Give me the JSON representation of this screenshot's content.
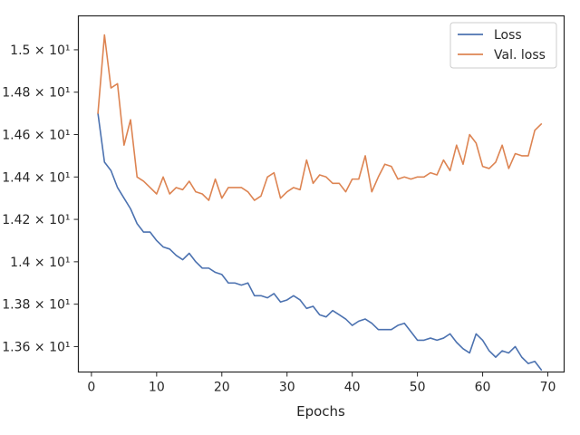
{
  "colors": {
    "loss": "#4c72b0",
    "val_loss": "#dd8452",
    "axis": "#262626",
    "legend_border": "#cccccc"
  },
  "chart_data": {
    "type": "line",
    "title": "",
    "xlabel": "Epochs",
    "ylabel": "",
    "xlim": [
      -2,
      72.5
    ],
    "ylim": [
      13.48,
      15.16
    ],
    "x_ticks": [
      0,
      10,
      20,
      30,
      40,
      50,
      60,
      70
    ],
    "x_tick_labels": [
      "0",
      "10",
      "20",
      "30",
      "40",
      "50",
      "60",
      "70"
    ],
    "y_ticks": [
      13.6,
      13.8,
      14.0,
      14.2,
      14.4,
      14.6,
      14.8,
      15.0
    ],
    "y_tick_labels": [
      "1.36 × 10¹",
      "1.38 × 10¹",
      "1.4 × 10¹",
      "1.42 × 10¹",
      "1.44 × 10¹",
      "1.46 × 10¹",
      "1.48 × 10¹",
      "1.5 × 10¹"
    ],
    "grid": false,
    "legend_position": "top-right",
    "x": [
      1,
      2,
      3,
      4,
      5,
      6,
      7,
      8,
      9,
      10,
      11,
      12,
      13,
      14,
      15,
      16,
      17,
      18,
      19,
      20,
      21,
      22,
      23,
      24,
      25,
      26,
      27,
      28,
      29,
      30,
      31,
      32,
      33,
      34,
      35,
      36,
      37,
      38,
      39,
      40,
      41,
      42,
      43,
      44,
      45,
      46,
      47,
      48,
      49,
      50,
      51,
      52,
      53,
      54,
      55,
      56,
      57,
      58,
      59,
      60,
      61,
      62,
      63,
      64,
      65,
      66,
      67,
      68,
      69
    ],
    "series": [
      {
        "name": "Loss",
        "color": "#4c72b0",
        "values": [
          14.7,
          14.47,
          14.43,
          14.35,
          14.3,
          14.25,
          14.18,
          14.14,
          14.14,
          14.1,
          14.07,
          14.06,
          14.03,
          14.01,
          14.04,
          14.0,
          13.97,
          13.97,
          13.95,
          13.94,
          13.9,
          13.9,
          13.89,
          13.9,
          13.84,
          13.84,
          13.83,
          13.85,
          13.81,
          13.82,
          13.84,
          13.82,
          13.78,
          13.79,
          13.75,
          13.74,
          13.77,
          13.75,
          13.73,
          13.7,
          13.72,
          13.73,
          13.71,
          13.68,
          13.68,
          13.68,
          13.7,
          13.71,
          13.67,
          13.63,
          13.63,
          13.64,
          13.63,
          13.64,
          13.66,
          13.62,
          13.59,
          13.57,
          13.66,
          13.63,
          13.58,
          13.55,
          13.58,
          13.57,
          13.6,
          13.55,
          13.52,
          13.53,
          13.49
        ]
      },
      {
        "name": "Val. loss",
        "color": "#dd8452",
        "values": [
          14.7,
          15.07,
          14.82,
          14.84,
          14.55,
          14.67,
          14.4,
          14.38,
          14.35,
          14.32,
          14.4,
          14.32,
          14.35,
          14.34,
          14.38,
          14.33,
          14.32,
          14.29,
          14.39,
          14.3,
          14.35,
          14.35,
          14.35,
          14.33,
          14.29,
          14.31,
          14.4,
          14.42,
          14.3,
          14.33,
          14.35,
          14.34,
          14.48,
          14.37,
          14.41,
          14.4,
          14.37,
          14.37,
          14.33,
          14.39,
          14.39,
          14.5,
          14.33,
          14.4,
          14.46,
          14.45,
          14.39,
          14.4,
          14.39,
          14.4,
          14.4,
          14.42,
          14.41,
          14.48,
          14.43,
          14.55,
          14.46,
          14.6,
          14.56,
          14.45,
          14.44,
          14.47,
          14.55,
          14.44,
          14.51,
          14.5,
          14.5,
          14.62,
          14.65
        ]
      }
    ]
  }
}
